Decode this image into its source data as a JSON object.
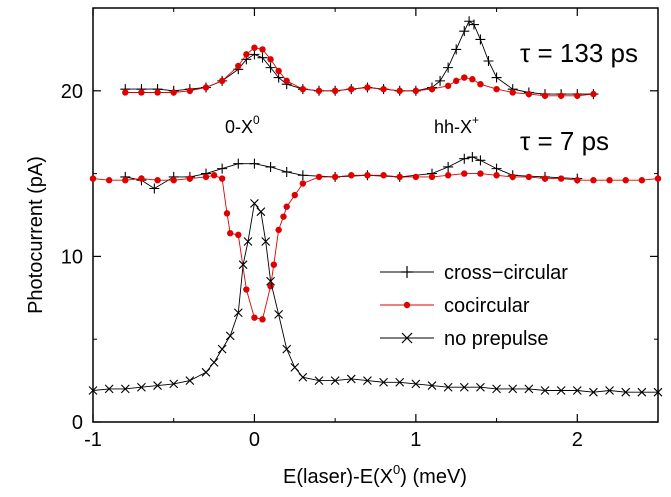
{
  "chart_data": {
    "type": "line",
    "xlabel": "E(laser)-E(X",
    "xlabel_sup": "0",
    "xlabel_suffix": ") (meV)",
    "ylabel": "Photocurrent (pA)",
    "xlim": [
      -1,
      2.5
    ],
    "ylim": [
      0,
      25
    ],
    "xticks": [
      -1,
      0,
      1,
      2
    ],
    "xtick_labels": [
      "-1",
      "0",
      "1",
      "2"
    ],
    "yticks": [
      0,
      10,
      20
    ],
    "ytick_labels": [
      "0",
      "10",
      "20"
    ],
    "grid": false,
    "legend_position": "center-right",
    "annotations": {
      "tau_133": "τ = 133 ps",
      "tau_7": "τ = 7 ps",
      "peak1_base": "0-X",
      "peak1_sup": "0",
      "peak2_base": "hh-X",
      "peak2_sup": "+"
    },
    "colors": {
      "cross_circular": "#000000",
      "cocircular": "#e00000",
      "no_prepulse": "#000000"
    },
    "series": [
      {
        "name": "cross−circular",
        "marker": "plus",
        "color": "#000000",
        "points": [
          [
            -0.8,
            20.1
          ],
          [
            -0.7,
            20.1
          ],
          [
            -0.6,
            20.1
          ],
          [
            -0.5,
            20.0
          ],
          [
            -0.4,
            20.1
          ],
          [
            -0.3,
            20.2
          ],
          [
            -0.2,
            20.6
          ],
          [
            -0.1,
            21.3
          ],
          [
            -0.05,
            21.9
          ],
          [
            0.0,
            22.2
          ],
          [
            0.05,
            22.0
          ],
          [
            0.1,
            21.4
          ],
          [
            0.15,
            20.8
          ],
          [
            0.2,
            20.4
          ],
          [
            0.3,
            20.1
          ],
          [
            0.4,
            20.0
          ],
          [
            0.5,
            20.0
          ],
          [
            0.6,
            20.1
          ],
          [
            0.7,
            20.2
          ],
          [
            0.8,
            20.1
          ],
          [
            0.9,
            20.0
          ],
          [
            1.0,
            20.0
          ],
          [
            1.1,
            20.2
          ],
          [
            1.15,
            20.6
          ],
          [
            1.2,
            21.4
          ],
          [
            1.25,
            22.5
          ],
          [
            1.3,
            23.6
          ],
          [
            1.33,
            24.2
          ],
          [
            1.36,
            24.0
          ],
          [
            1.4,
            23.1
          ],
          [
            1.45,
            21.8
          ],
          [
            1.5,
            20.8
          ],
          [
            1.6,
            20.1
          ],
          [
            1.7,
            19.9
          ],
          [
            1.8,
            19.8
          ],
          [
            1.9,
            19.8
          ],
          [
            2.0,
            19.8
          ],
          [
            2.1,
            19.8
          ],
          [
            -0.8,
            14.8
          ],
          [
            -0.7,
            14.6
          ],
          [
            -0.62,
            14.1
          ],
          [
            -0.5,
            14.8
          ],
          [
            -0.4,
            14.8
          ],
          [
            -0.3,
            15.0
          ],
          [
            -0.2,
            15.3
          ],
          [
            -0.1,
            15.6
          ],
          [
            0.0,
            15.6
          ],
          [
            0.1,
            15.4
          ],
          [
            0.2,
            15.1
          ],
          [
            0.3,
            14.9
          ],
          [
            0.5,
            14.8
          ],
          [
            0.7,
            14.9
          ],
          [
            0.9,
            14.8
          ],
          [
            1.1,
            15.0
          ],
          [
            1.2,
            15.4
          ],
          [
            1.3,
            15.9
          ],
          [
            1.35,
            16.0
          ],
          [
            1.4,
            15.8
          ],
          [
            1.5,
            15.3
          ],
          [
            1.6,
            14.9
          ],
          [
            1.8,
            14.8
          ],
          [
            2.0,
            14.7
          ]
        ]
      },
      {
        "name": "cocircular",
        "marker": "dot",
        "color": "#e00000",
        "points": [
          [
            -0.8,
            19.9
          ],
          [
            -0.7,
            19.9
          ],
          [
            -0.6,
            19.9
          ],
          [
            -0.5,
            19.9
          ],
          [
            -0.4,
            20.0
          ],
          [
            -0.3,
            20.2
          ],
          [
            -0.2,
            20.6
          ],
          [
            -0.1,
            21.5
          ],
          [
            -0.05,
            22.2
          ],
          [
            0.0,
            22.6
          ],
          [
            0.05,
            22.5
          ],
          [
            0.1,
            21.9
          ],
          [
            0.15,
            21.2
          ],
          [
            0.2,
            20.6
          ],
          [
            0.3,
            20.1
          ],
          [
            0.4,
            20.0
          ],
          [
            0.5,
            20.0
          ],
          [
            0.6,
            20.1
          ],
          [
            0.7,
            20.2
          ],
          [
            0.8,
            20.1
          ],
          [
            0.9,
            20.0
          ],
          [
            1.0,
            20.0
          ],
          [
            1.1,
            20.1
          ],
          [
            1.2,
            20.3
          ],
          [
            1.25,
            20.6
          ],
          [
            1.3,
            20.8
          ],
          [
            1.35,
            20.7
          ],
          [
            1.4,
            20.4
          ],
          [
            1.5,
            20.1
          ],
          [
            1.6,
            19.9
          ],
          [
            1.7,
            19.8
          ],
          [
            1.8,
            19.7
          ],
          [
            1.9,
            19.7
          ],
          [
            2.0,
            19.7
          ],
          [
            2.1,
            19.8
          ],
          [
            -1.0,
            14.7
          ],
          [
            -0.9,
            14.6
          ],
          [
            -0.8,
            14.6
          ],
          [
            -0.7,
            14.7
          ],
          [
            -0.6,
            14.6
          ],
          [
            -0.5,
            14.6
          ],
          [
            -0.4,
            14.7
          ],
          [
            -0.3,
            14.8
          ],
          [
            -0.25,
            14.9
          ],
          [
            -0.2,
            14.7
          ],
          [
            -0.17,
            12.6
          ],
          [
            -0.15,
            11.4
          ],
          [
            -0.1,
            11.3
          ],
          [
            -0.05,
            8.0
          ],
          [
            0.0,
            6.3
          ],
          [
            0.05,
            6.2
          ],
          [
            0.1,
            8.2
          ],
          [
            0.12,
            9.5
          ],
          [
            0.15,
            11.6
          ],
          [
            0.18,
            12.4
          ],
          [
            0.2,
            13.0
          ],
          [
            0.25,
            13.7
          ],
          [
            0.3,
            14.4
          ],
          [
            0.4,
            14.8
          ],
          [
            0.5,
            14.8
          ],
          [
            0.6,
            14.9
          ],
          [
            0.7,
            14.9
          ],
          [
            0.8,
            14.9
          ],
          [
            0.9,
            14.8
          ],
          [
            1.0,
            14.8
          ],
          [
            1.1,
            14.8
          ],
          [
            1.2,
            14.9
          ],
          [
            1.3,
            15.0
          ],
          [
            1.4,
            15.0
          ],
          [
            1.5,
            14.9
          ],
          [
            1.6,
            14.8
          ],
          [
            1.7,
            14.8
          ],
          [
            1.8,
            14.7
          ],
          [
            1.9,
            14.7
          ],
          [
            2.0,
            14.6
          ],
          [
            2.1,
            14.6
          ],
          [
            2.2,
            14.6
          ],
          [
            2.3,
            14.6
          ],
          [
            2.4,
            14.6
          ],
          [
            2.5,
            14.7
          ]
        ]
      },
      {
        "name": "no prepulse",
        "marker": "cross",
        "color": "#000000",
        "points": [
          [
            -1.0,
            1.9
          ],
          [
            -0.9,
            2.0
          ],
          [
            -0.8,
            2.0
          ],
          [
            -0.7,
            2.1
          ],
          [
            -0.6,
            2.2
          ],
          [
            -0.5,
            2.3
          ],
          [
            -0.4,
            2.5
          ],
          [
            -0.3,
            3.0
          ],
          [
            -0.25,
            3.6
          ],
          [
            -0.2,
            4.4
          ],
          [
            -0.15,
            5.2
          ],
          [
            -0.1,
            6.6
          ],
          [
            -0.07,
            9.5
          ],
          [
            -0.04,
            10.9
          ],
          [
            0.0,
            13.2
          ],
          [
            0.04,
            12.7
          ],
          [
            0.07,
            10.9
          ],
          [
            0.1,
            8.5
          ],
          [
            0.15,
            6.5
          ],
          [
            0.2,
            4.4
          ],
          [
            0.25,
            3.3
          ],
          [
            0.3,
            2.7
          ],
          [
            0.4,
            2.5
          ],
          [
            0.5,
            2.5
          ],
          [
            0.6,
            2.6
          ],
          [
            0.7,
            2.5
          ],
          [
            0.8,
            2.4
          ],
          [
            0.9,
            2.4
          ],
          [
            1.0,
            2.3
          ],
          [
            1.1,
            2.2
          ],
          [
            1.2,
            2.1
          ],
          [
            1.3,
            2.1
          ],
          [
            1.4,
            2.1
          ],
          [
            1.5,
            2.0
          ],
          [
            1.6,
            2.0
          ],
          [
            1.7,
            2.0
          ],
          [
            1.8,
            1.9
          ],
          [
            1.9,
            1.9
          ],
          [
            2.0,
            1.9
          ],
          [
            2.1,
            1.8
          ],
          [
            2.2,
            1.9
          ],
          [
            2.3,
            1.8
          ],
          [
            2.4,
            1.8
          ],
          [
            2.5,
            1.8
          ]
        ]
      }
    ]
  }
}
